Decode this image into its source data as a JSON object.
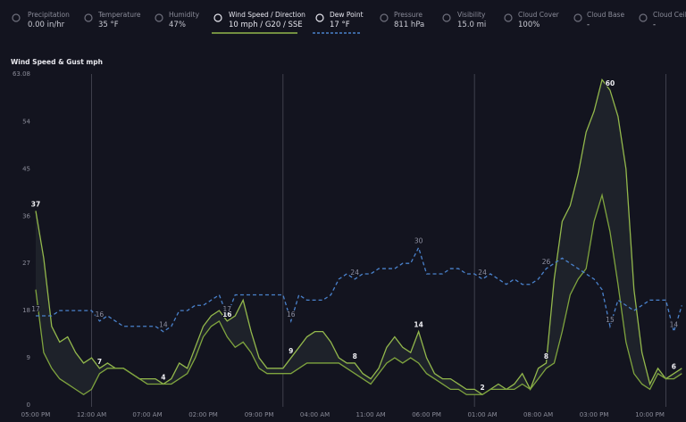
{
  "header": {
    "metrics": [
      {
        "label": "Precipitation",
        "value": "0.00 in/hr"
      },
      {
        "label": "Temperature",
        "value": "35 °F"
      },
      {
        "label": "Humidity",
        "value": "47%"
      },
      {
        "label": "Wind Speed / Direction",
        "value": "10 mph / G20 / SSE"
      },
      {
        "label": "Dew Point",
        "value": "17 °F"
      },
      {
        "label": "Pressure",
        "value": "811 hPa"
      },
      {
        "label": "Visibility",
        "value": "15.0 mi"
      },
      {
        "label": "Cloud Cover",
        "value": "100%"
      },
      {
        "label": "Cloud Base",
        "value": "-"
      },
      {
        "label": "Cloud Ceiling",
        "value": "-"
      }
    ]
  },
  "chart_data": {
    "type": "line",
    "title": "Wind Speed & Gust mph",
    "categories": [
      "05:00 PM",
      null,
      null,
      null,
      null,
      null,
      null,
      "12:00 AM",
      null,
      null,
      null,
      null,
      null,
      null,
      "07:00 AM",
      null,
      null,
      null,
      null,
      null,
      null,
      "02:00 PM",
      null,
      null,
      null,
      null,
      null,
      null,
      "09:00 PM",
      null,
      null,
      null,
      null,
      null,
      null,
      "04:00 AM",
      null,
      null,
      null,
      null,
      null,
      null,
      "11:00 AM",
      null,
      null,
      null,
      null,
      null,
      null,
      "06:00 PM",
      null,
      null,
      null,
      null,
      null,
      null,
      "01:00 AM",
      null,
      null,
      null,
      null,
      null,
      null,
      "08:00 AM",
      null,
      null,
      null,
      null,
      null,
      null,
      "03:00 PM",
      null,
      null,
      null,
      null,
      null,
      null,
      "10:00 PM",
      null,
      null,
      null,
      null
    ],
    "series": [
      {
        "name": "Wind Gust",
        "color": "#93b84c",
        "values": [
          37,
          28,
          15,
          12,
          13,
          10,
          8,
          9,
          7,
          8,
          7,
          7,
          6,
          5,
          5,
          5,
          4,
          5,
          8,
          7,
          11,
          15,
          17,
          18,
          16,
          17,
          20,
          14,
          9,
          7,
          7,
          7,
          9,
          11,
          13,
          14,
          14,
          12,
          9,
          8,
          8,
          6,
          5,
          7,
          11,
          13,
          11,
          10,
          14,
          9,
          6,
          5,
          5,
          4,
          3,
          3,
          2,
          3,
          4,
          3,
          4,
          6,
          3,
          7,
          8,
          24,
          35,
          38,
          44,
          52,
          56,
          62,
          60,
          55,
          45,
          22,
          10,
          4,
          7,
          5,
          6,
          7
        ]
      },
      {
        "name": "Wind Speed",
        "color": "#7fa43e",
        "values": [
          22,
          10,
          7,
          5,
          4,
          3,
          2,
          3,
          6,
          7,
          7,
          7,
          6,
          5,
          4,
          4,
          4,
          4,
          5,
          6,
          9,
          13,
          15,
          16,
          13,
          11,
          12,
          10,
          7,
          6,
          6,
          6,
          6,
          7,
          8,
          8,
          8,
          8,
          8,
          7,
          6,
          5,
          4,
          6,
          8,
          9,
          8,
          9,
          8,
          6,
          5,
          4,
          3,
          3,
          2,
          2,
          2,
          3,
          3,
          3,
          3,
          4,
          3,
          5,
          7,
          8,
          14,
          21,
          24,
          26,
          35,
          40,
          33,
          23,
          12,
          6,
          4,
          3,
          6,
          5,
          5,
          6
        ]
      },
      {
        "name": "Dew Point",
        "color": "#4a82cc",
        "dashed": true,
        "values": [
          17,
          17,
          17,
          18,
          18,
          18,
          18,
          18,
          16,
          17,
          16,
          15,
          15,
          15,
          15,
          15,
          14,
          15,
          18,
          18,
          19,
          19,
          20,
          21,
          17,
          21,
          21,
          21,
          21,
          21,
          21,
          21,
          16,
          21,
          20,
          20,
          20,
          21,
          24,
          25,
          24,
          25,
          25,
          26,
          26,
          26,
          27,
          27,
          30,
          25,
          25,
          25,
          26,
          26,
          25,
          25,
          24,
          25,
          24,
          23,
          24,
          23,
          23,
          24,
          26,
          27,
          28,
          27,
          26,
          25,
          24,
          22,
          15,
          20,
          19,
          18,
          19,
          20,
          20,
          20,
          14,
          19
        ]
      }
    ],
    "ylim": [
      0,
      63.08
    ],
    "yticks": [
      0,
      9,
      18,
      27,
      36,
      45,
      54,
      63.08
    ]
  }
}
